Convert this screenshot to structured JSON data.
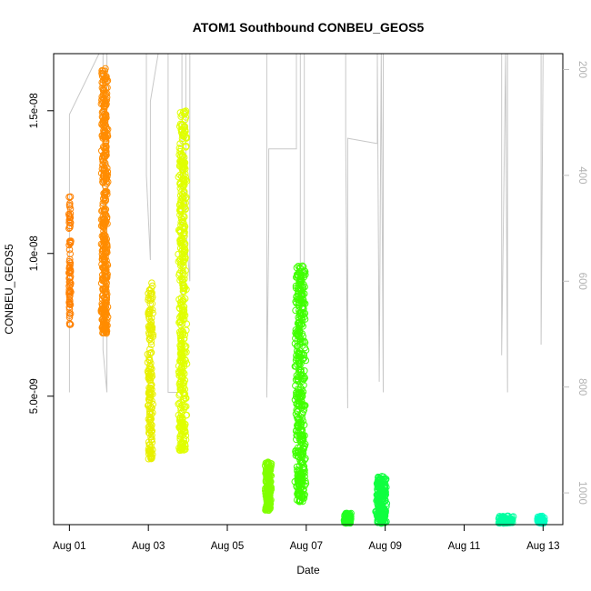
{
  "chart_data": {
    "type": "scatter",
    "title": "ATOM1 Southbound CONBEU_GEOS5",
    "xlabel": "Date",
    "ylabel": "CONBEU_GEOS5",
    "x_tick_labels": [
      "Aug 01",
      "Aug 03",
      "Aug 05",
      "Aug 07",
      "Aug 09",
      "Aug 11",
      "Aug 13"
    ],
    "x_tick_days": [
      1,
      3,
      5,
      7,
      9,
      11,
      13
    ],
    "xlim_days": [
      0.6,
      13.5
    ],
    "ylim": [
      5e-10,
      1.7e-08
    ],
    "y_ticks": [
      5e-09,
      1e-08,
      1.5e-08
    ],
    "y_tick_labels": [
      "5.0e-09",
      "1.0e-08",
      "1.5e-08"
    ],
    "right_axis": {
      "description": "pressure (reversed)",
      "ticks": [
        200,
        400,
        600,
        800,
        1000
      ],
      "tick_labels": [
        "200",
        "400",
        "600",
        "800",
        "1000"
      ],
      "lim_top": 170,
      "lim_bottom": 1060,
      "color": "#bebebe"
    },
    "pressure_trace": {
      "color": "#c8c8c8",
      "points": [
        [
          1.0,
          810
        ],
        [
          1.0,
          285
        ],
        [
          1.75,
          170
        ],
        [
          1.85,
          170
        ],
        [
          1.85,
          730
        ],
        [
          1.95,
          810
        ],
        [
          1.95,
          170
        ],
        [
          2.95,
          170
        ],
        [
          2.95,
          400
        ],
        [
          3.05,
          560
        ],
        [
          3.05,
          260
        ],
        [
          3.25,
          170
        ],
        [
          3.5,
          170
        ],
        [
          3.5,
          810
        ],
        [
          3.85,
          810
        ],
        [
          3.85,
          170
        ],
        [
          3.95,
          170
        ],
        [
          3.95,
          500
        ],
        [
          4.05,
          600
        ],
        [
          4.05,
          170
        ],
        [
          4.2,
          170
        ],
        [
          5.4,
          170
        ],
        [
          6.0,
          170
        ],
        [
          6.0,
          820
        ],
        [
          6.05,
          500
        ],
        [
          6.05,
          350
        ],
        [
          6.75,
          350
        ],
        [
          6.75,
          170
        ],
        [
          6.85,
          170
        ],
        [
          6.85,
          600
        ],
        [
          6.95,
          650
        ],
        [
          6.95,
          170
        ],
        [
          7.05,
          170
        ],
        [
          8.0,
          170
        ],
        [
          8.0,
          330
        ],
        [
          8.05,
          840
        ],
        [
          8.05,
          330
        ],
        [
          8.8,
          340
        ],
        [
          8.8,
          170
        ],
        [
          8.85,
          790
        ],
        [
          8.9,
          170
        ],
        [
          8.95,
          810
        ],
        [
          8.95,
          170
        ],
        [
          11.95,
          170
        ],
        [
          11.95,
          740
        ],
        [
          12.05,
          170
        ],
        [
          12.1,
          810
        ],
        [
          12.1,
          170
        ],
        [
          12.95,
          170
        ],
        [
          12.95,
          720
        ],
        [
          13.0,
          170
        ]
      ]
    },
    "series": [
      {
        "color": "#ff8000",
        "x_range": [
          0.98,
          1.04
        ],
        "y_range": [
          7.5e-09,
          1.2e-08
        ],
        "count": 80
      },
      {
        "color": "#ff8c00",
        "x_range": [
          1.8,
          1.98
        ],
        "y_range": [
          7.2e-09,
          1.65e-08
        ],
        "count": 400
      },
      {
        "color": "#e8f000",
        "x_range": [
          2.98,
          3.12
        ],
        "y_range": [
          2.8e-09,
          9e-09
        ],
        "count": 180
      },
      {
        "color": "#e0ff00",
        "x_range": [
          3.75,
          3.98
        ],
        "y_range": [
          3.1e-09,
          1.5e-08
        ],
        "count": 450
      },
      {
        "color": "#80ff00",
        "x_range": [
          5.95,
          6.12
        ],
        "y_range": [
          1e-09,
          2.7e-09
        ],
        "count": 180
      },
      {
        "color": "#40ff00",
        "x_range": [
          6.7,
          7.0
        ],
        "y_range": [
          1.3e-09,
          9.6e-09
        ],
        "count": 420
      },
      {
        "color": "#20ff20",
        "x_range": [
          7.95,
          8.15
        ],
        "y_range": [
          5.5e-10,
          9e-10
        ],
        "count": 80
      },
      {
        "color": "#10ff40",
        "x_range": [
          8.75,
          9.05
        ],
        "y_range": [
          5.5e-10,
          2.2e-09
        ],
        "count": 220
      },
      {
        "color": "#00ffa0",
        "x_range": [
          11.85,
          12.25
        ],
        "y_range": [
          5.5e-10,
          8e-10
        ],
        "count": 80
      },
      {
        "color": "#00ffc0",
        "x_range": [
          12.85,
          13.05
        ],
        "y_range": [
          5.5e-10,
          8e-10
        ],
        "count": 70
      }
    ]
  }
}
